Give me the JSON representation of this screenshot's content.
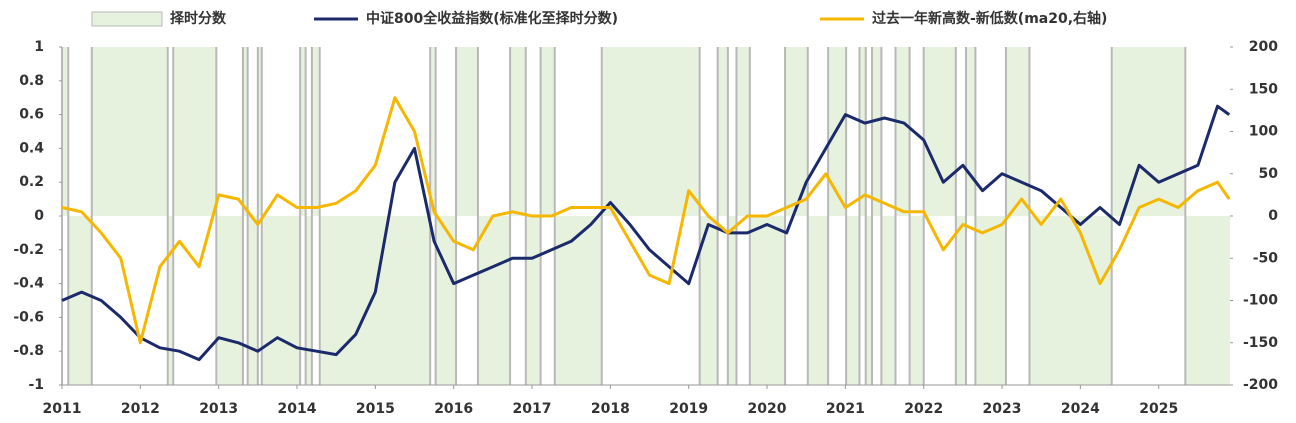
{
  "chart_data": {
    "type": "line",
    "legend": [
      "chart_data.series.0.name",
      "chart_data.series.1.name",
      "chart_data.series.2.name"
    ],
    "xlim": [
      2011,
      2025.91
    ],
    "xticks": [
      2011,
      2012,
      2013,
      2014,
      2015,
      2016,
      2017,
      2018,
      2019,
      2020,
      2021,
      2022,
      2023,
      2024,
      2025
    ],
    "ylim": [
      -1,
      1
    ],
    "yticks": [
      1,
      0.8,
      0.6,
      0.4,
      0.2,
      0,
      -0.2,
      -0.4,
      -0.6,
      -0.8,
      -1
    ],
    "y2lim": [
      -200,
      200
    ],
    "y2ticks": [
      200,
      150,
      100,
      50,
      0,
      -50,
      -100,
      -150,
      -200
    ],
    "x": [
      2011,
      2011.25,
      2011.5,
      2011.75,
      2012,
      2012.25,
      2012.5,
      2012.75,
      2013,
      2013.25,
      2013.5,
      2013.75,
      2014,
      2014.25,
      2014.5,
      2014.75,
      2015,
      2015.25,
      2015.5,
      2015.75,
      2016,
      2016.25,
      2016.5,
      2016.75,
      2017,
      2017.25,
      2017.5,
      2017.75,
      2018,
      2018.25,
      2018.5,
      2018.75,
      2019,
      2019.25,
      2019.5,
      2019.75,
      2020,
      2020.25,
      2020.5,
      2020.75,
      2021,
      2021.25,
      2021.5,
      2021.75,
      2022,
      2022.25,
      2022.5,
      2022.75,
      2023,
      2023.25,
      2023.5,
      2023.75,
      2024,
      2024.25,
      2024.5,
      2024.75,
      2025,
      2025.25,
      2025.5,
      2025.75,
      2025.9
    ],
    "series": [
      {
        "name": "择时分数",
        "type": "step-area",
        "color": "#e6f2de",
        "edge_color": "#b8b8b8",
        "x": [
          2011,
          2011.08,
          2011.38,
          2012.35,
          2012.42,
          2012.97,
          2013.31,
          2013.37,
          2013.5,
          2013.55,
          2014.04,
          2014.11,
          2014.19,
          2014.29,
          2015.7,
          2015.77,
          2016.03,
          2016.31,
          2016.72,
          2016.92,
          2017.11,
          2017.29,
          2017.89,
          2019.14,
          2019.37,
          2019.5,
          2019.61,
          2019.78,
          2020.23,
          2020.52,
          2020.78,
          2021.01,
          2021.18,
          2021.26,
          2021.34,
          2021.46,
          2021.64,
          2021.82,
          2022,
          2022.41,
          2022.54,
          2022.66,
          2023.05,
          2023.35,
          2024.4,
          2025.34
        ],
        "values": [
          1,
          -1,
          1,
          -1,
          1,
          -1,
          1,
          -1,
          1,
          -1,
          1,
          -1,
          1,
          -1,
          1,
          -1,
          1,
          -1,
          1,
          -1,
          1,
          -1,
          1,
          -1,
          1,
          -1,
          1,
          -1,
          1,
          -1,
          1,
          -1,
          1,
          -1,
          1,
          -1,
          1,
          -1,
          1,
          -1,
          1,
          -1,
          1,
          -1,
          1,
          -1
        ]
      },
      {
        "name": "中证800全收益指数(标准化至择时分数)",
        "color": "#1b2a6b",
        "values": [
          -0.5,
          -0.45,
          -0.5,
          -0.6,
          -0.72,
          -0.78,
          -0.8,
          -0.85,
          -0.72,
          -0.75,
          -0.8,
          -0.72,
          -0.78,
          -0.8,
          -0.82,
          -0.7,
          -0.45,
          0.2,
          0.4,
          -0.15,
          -0.4,
          -0.35,
          -0.3,
          -0.25,
          -0.25,
          -0.2,
          -0.15,
          -0.05,
          0.08,
          -0.05,
          -0.2,
          -0.3,
          -0.4,
          -0.05,
          -0.1,
          -0.1,
          -0.05,
          -0.1,
          0.2,
          0.4,
          0.6,
          0.55,
          0.58,
          0.55,
          0.45,
          0.2,
          0.3,
          0.15,
          0.25,
          0.2,
          0.15,
          0.05,
          -0.05,
          0.05,
          -0.05,
          0.3,
          0.2,
          0.25,
          0.3,
          0.65,
          0.6
        ]
      },
      {
        "name": "过去一年新高数-新低数(ma20,右轴)",
        "color": "#f5b700",
        "axis": "y2",
        "values": [
          10,
          5,
          -20,
          -50,
          -150,
          -60,
          -30,
          -60,
          25,
          20,
          -10,
          25,
          10,
          10,
          15,
          30,
          60,
          140,
          100,
          5,
          -30,
          -40,
          0,
          5,
          0,
          0,
          10,
          10,
          10,
          -30,
          -70,
          -80,
          30,
          0,
          -20,
          0,
          0,
          10,
          20,
          50,
          10,
          25,
          15,
          5,
          5,
          -40,
          -10,
          -20,
          -10,
          20,
          -10,
          20,
          -20,
          -80,
          -40,
          10,
          20,
          10,
          30,
          40,
          20
        ]
      }
    ]
  }
}
